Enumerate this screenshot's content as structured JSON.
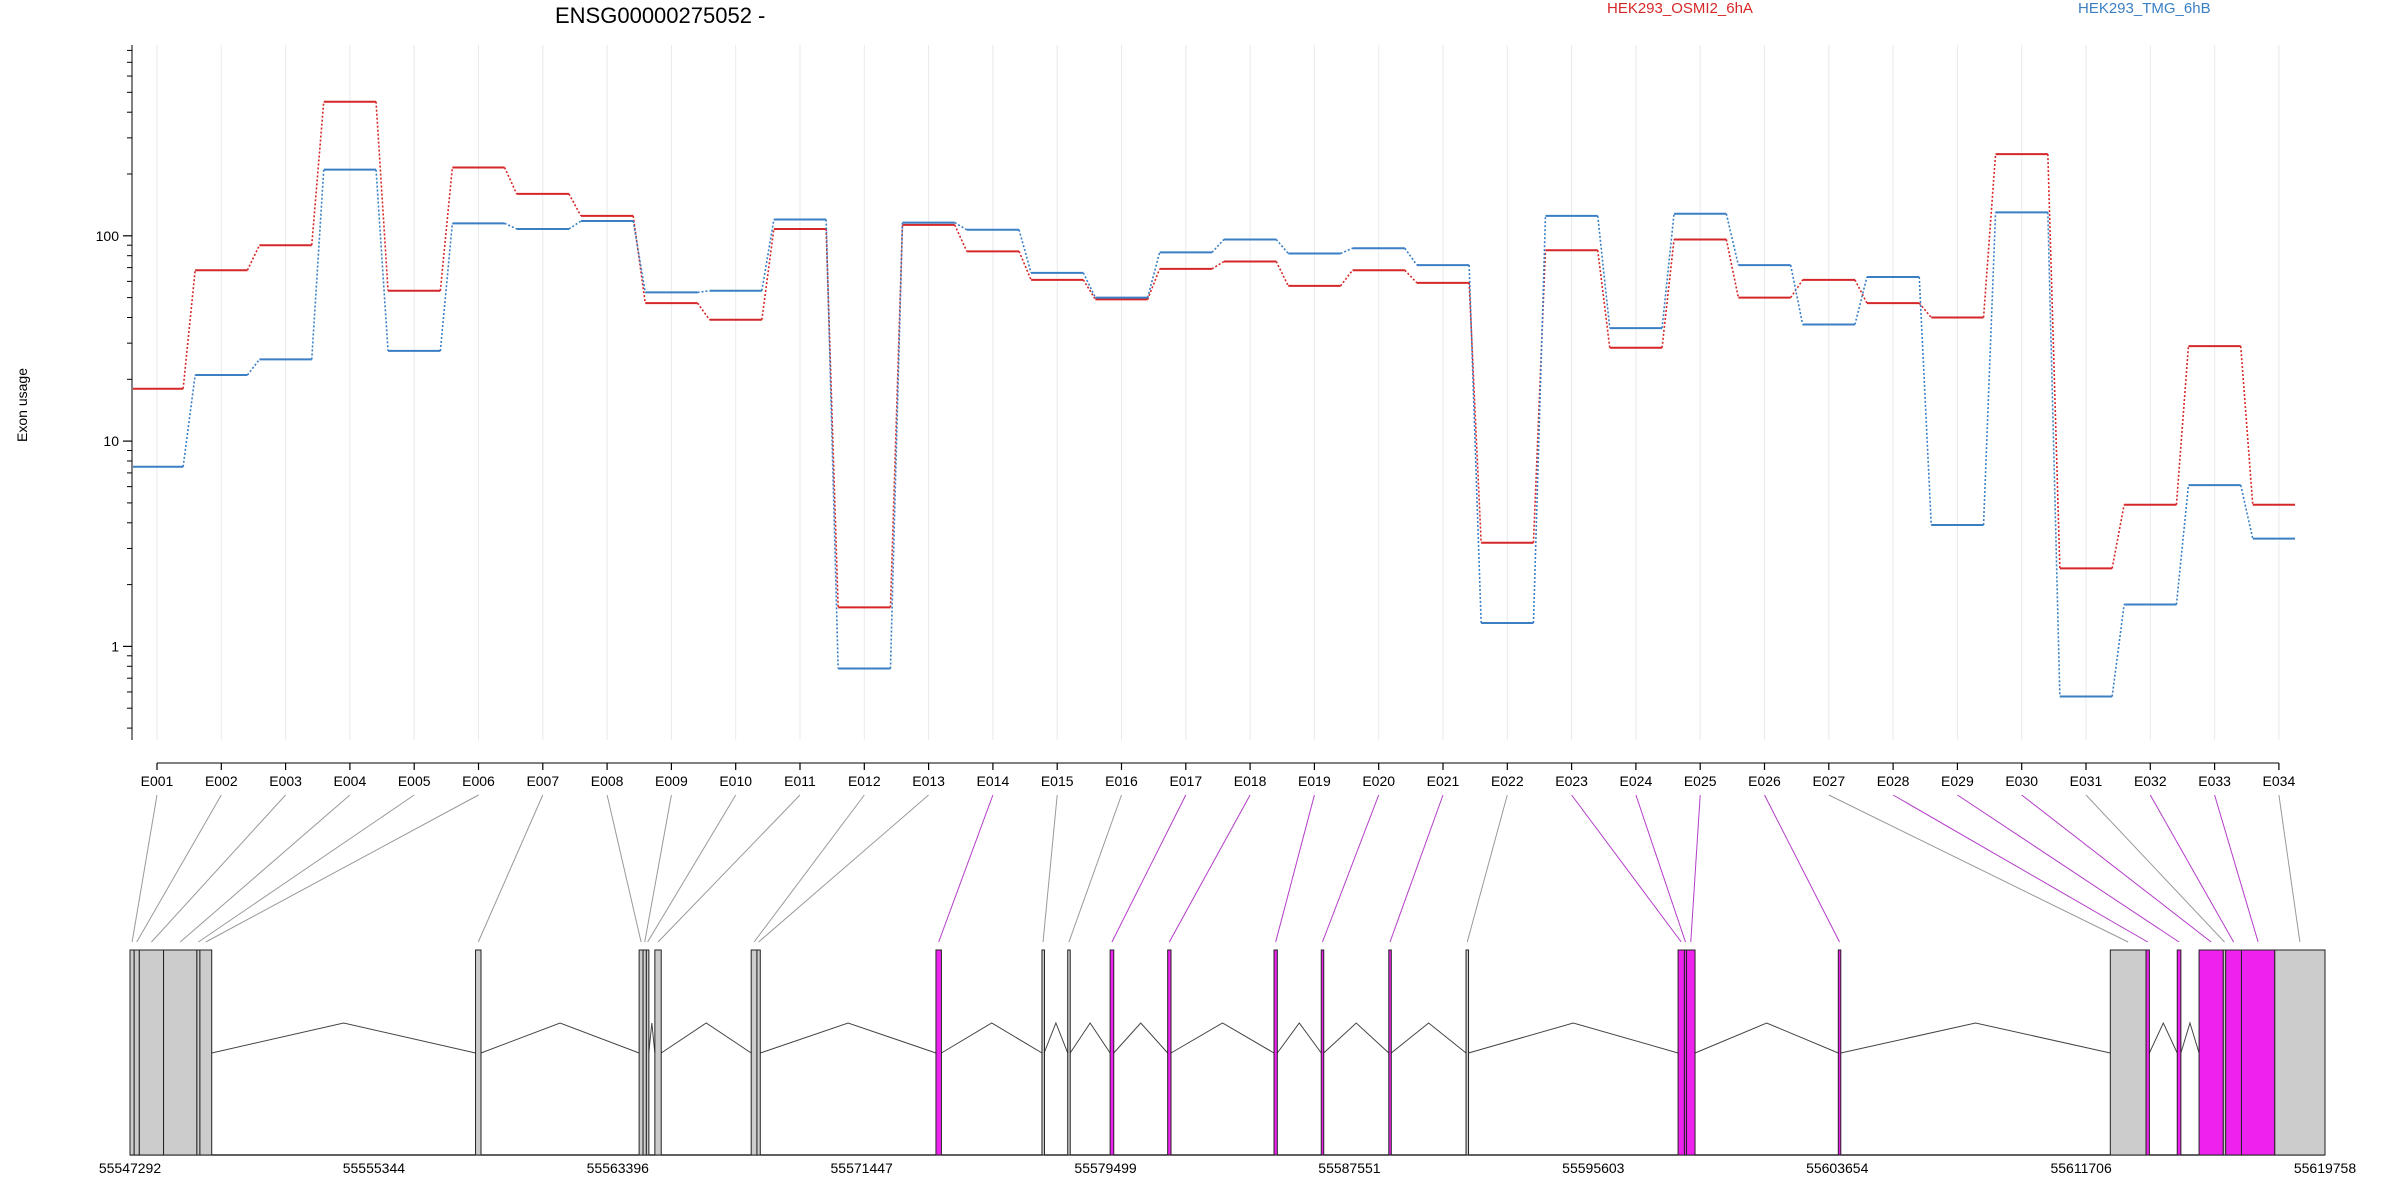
{
  "chart_data": {
    "type": "line",
    "title": "ENSG00000275052 -",
    "ylabel": "Exon usage",
    "xlabel": "",
    "y_scale": "log",
    "ylim": [
      0.35,
      850
    ],
    "y_ticks": [
      1,
      10,
      100
    ],
    "y_tick_labels": [
      "1",
      "10",
      "100"
    ],
    "grid": "vertical",
    "legend": "top",
    "categories": [
      "E001",
      "E002",
      "E003",
      "E004",
      "E005",
      "E006",
      "E007",
      "E008",
      "E009",
      "E010",
      "E011",
      "E012",
      "E013",
      "E014",
      "E015",
      "E016",
      "E017",
      "E018",
      "E019",
      "E020",
      "E021",
      "E022",
      "E023",
      "E024",
      "E025",
      "E026",
      "E027",
      "E028",
      "E029",
      "E030",
      "E031",
      "E032",
      "E033",
      "E034"
    ],
    "series": [
      {
        "name": "HEK293_OSMI2_6hA",
        "color": "#d62728",
        "values": [
          18,
          68,
          90,
          450,
          54,
          215,
          160,
          125,
          47,
          39,
          108,
          1.55,
          113,
          84,
          61,
          49,
          69,
          75,
          57,
          68,
          59,
          3.2,
          85,
          28.5,
          96,
          50,
          61,
          47,
          40,
          250,
          2.4,
          4.9,
          29,
          4.9
        ]
      },
      {
        "name": "HEK293_TMG_6hB",
        "color": "#3a7fc4",
        "values": [
          7.5,
          21,
          25,
          210,
          27.5,
          115,
          108,
          118,
          53,
          54,
          120,
          0.78,
          116,
          107,
          66,
          50,
          83,
          96,
          82,
          87,
          72,
          1.3,
          125,
          35.5,
          128,
          72,
          37,
          63,
          3.9,
          130,
          0.57,
          1.6,
          6.1,
          3.35
        ]
      }
    ],
    "gene_model": {
      "genomic_start": 55547292,
      "genomic_end": 55619758,
      "coordinate_labels": [
        "55547292",
        "55555344",
        "55563396",
        "55571447",
        "55579499",
        "55587551",
        "55595603",
        "55603654",
        "55611706",
        "55619758"
      ],
      "colors": {
        "constitutive": "#cccccc",
        "highlighted": "#ee22ee",
        "intron": "#444444"
      },
      "exons": [
        {
          "id": "E001",
          "start": 55547292,
          "end": 55547430,
          "highlight": false
        },
        {
          "id": "E002",
          "start": 55547430,
          "end": 55547600,
          "highlight": false
        },
        {
          "id": "E003",
          "start": 55547600,
          "end": 55548400,
          "highlight": false
        },
        {
          "id": "E004",
          "start": 55548400,
          "end": 55549500,
          "highlight": false
        },
        {
          "id": "E005",
          "start": 55549500,
          "end": 55549600,
          "highlight": false
        },
        {
          "id": "E006",
          "start": 55549600,
          "end": 55549990,
          "highlight": false
        },
        {
          "id": "E007",
          "start": 55558700,
          "end": 55558880,
          "highlight": false
        },
        {
          "id": "E008",
          "start": 55564100,
          "end": 55564230,
          "highlight": false
        },
        {
          "id": "E009",
          "start": 55564230,
          "end": 55564340,
          "highlight": false
        },
        {
          "id": "E010",
          "start": 55564340,
          "end": 55564420,
          "highlight": false
        },
        {
          "id": "E011",
          "start": 55564620,
          "end": 55564830,
          "highlight": false
        },
        {
          "id": "E012",
          "start": 55567800,
          "end": 55567990,
          "highlight": false
        },
        {
          "id": "E013",
          "start": 55567990,
          "end": 55568100,
          "highlight": false
        },
        {
          "id": "E014",
          "start": 55573900,
          "end": 55574080,
          "highlight": true
        },
        {
          "id": "E015",
          "start": 55577400,
          "end": 55577470,
          "highlight": false
        },
        {
          "id": "E016",
          "start": 55578250,
          "end": 55578330,
          "highlight": false
        },
        {
          "id": "E017",
          "start": 55579650,
          "end": 55579770,
          "highlight": true
        },
        {
          "id": "E018",
          "start": 55581550,
          "end": 55581660,
          "highlight": true
        },
        {
          "id": "E019",
          "start": 55585060,
          "end": 55585170,
          "highlight": true
        },
        {
          "id": "E020",
          "start": 55586620,
          "end": 55586700,
          "highlight": true
        },
        {
          "id": "E021",
          "start": 55588850,
          "end": 55588930,
          "highlight": true
        },
        {
          "id": "E022",
          "start": 55591400,
          "end": 55591480,
          "highlight": false
        },
        {
          "id": "E023",
          "start": 55598400,
          "end": 55598610,
          "highlight": true
        },
        {
          "id": "E024",
          "start": 55598610,
          "end": 55598680,
          "highlight": true
        },
        {
          "id": "E025",
          "start": 55598680,
          "end": 55598960,
          "highlight": true
        },
        {
          "id": "E026",
          "start": 55603690,
          "end": 55603770,
          "highlight": true
        },
        {
          "id": "E027",
          "start": 55612670,
          "end": 55613850,
          "highlight": false
        },
        {
          "id": "E028",
          "start": 55613850,
          "end": 55613960,
          "highlight": true
        },
        {
          "id": "E029",
          "start": 55614880,
          "end": 55615000,
          "highlight": true
        },
        {
          "id": "E030",
          "start": 55615600,
          "end": 55616400,
          "highlight": true
        },
        {
          "id": "E031",
          "start": 55616400,
          "end": 55616480,
          "highlight": false
        },
        {
          "id": "E032",
          "start": 55616480,
          "end": 55617000,
          "highlight": true
        },
        {
          "id": "E033",
          "start": 55617000,
          "end": 55618100,
          "highlight": true
        },
        {
          "id": "E034",
          "start": 55618100,
          "end": 55619758,
          "highlight": false
        }
      ]
    }
  }
}
